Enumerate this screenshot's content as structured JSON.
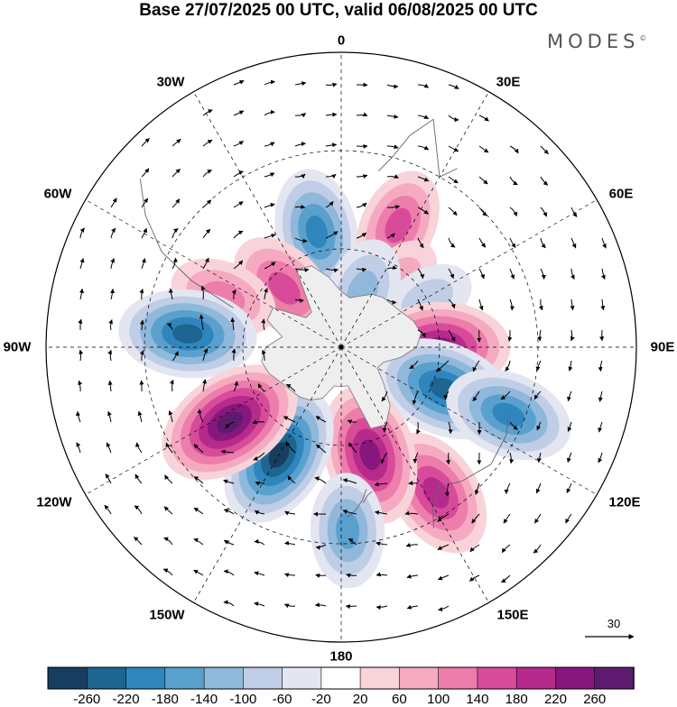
{
  "title": "Base 27/07/2025 00 UTC, valid 06/08/2025 00 UTC",
  "brand": "MODES",
  "brand_mark": "©",
  "lon_labels": {
    "l0": "0",
    "l30e": "30E",
    "l60e": "60E",
    "l90e": "90E",
    "l120e": "120E",
    "l150e": "150E",
    "l180": "180",
    "l150w": "150W",
    "l120w": "120W",
    "l90w": "90W",
    "l60w": "60W",
    "l30w": "30W"
  },
  "vector_reference": "30",
  "colorbar": {
    "ticks": [
      "-260",
      "-220",
      "-180",
      "-140",
      "-100",
      "-60",
      "-20",
      "20",
      "60",
      "100",
      "140",
      "180",
      "220",
      "260"
    ],
    "colors": [
      "#173e5f",
      "#1d6691",
      "#2f86bd",
      "#5aa0cd",
      "#8fb8da",
      "#bfcde6",
      "#e3e5f1",
      "#ffffff",
      "#f8d3d9",
      "#f5aac2",
      "#ed7daa",
      "#d84b9a",
      "#b62a8c",
      "#87177c",
      "#5e1a6e"
    ]
  },
  "anomaly_centers": [
    {
      "lon": -12,
      "lat": 54,
      "value": -190
    },
    {
      "lon": 25,
      "lat": 49,
      "value": 150
    },
    {
      "lon": 41,
      "lat": 63,
      "value": 70
    },
    {
      "lon": 61,
      "lat": 60,
      "value": -80
    },
    {
      "lon": -44,
      "lat": 65,
      "value": 170
    },
    {
      "lon": -67,
      "lat": 51,
      "value": 130
    },
    {
      "lon": 21,
      "lat": 72,
      "value": -130
    },
    {
      "lon": -85,
      "lat": 43,
      "value": -230
    },
    {
      "lon": 90,
      "lat": 60,
      "value": 240
    },
    {
      "lon": 112,
      "lat": 56,
      "value": -250
    },
    {
      "lon": 112,
      "lat": 35,
      "value": -200
    },
    {
      "lon": 147,
      "lat": 37,
      "value": 210
    },
    {
      "lon": 165,
      "lat": 56,
      "value": 240
    },
    {
      "lon": -150,
      "lat": 52,
      "value": -260
    },
    {
      "lon": -124,
      "lat": 49,
      "value": 270
    },
    {
      "lon": 178,
      "lat": 34,
      "value": -150
    }
  ]
}
